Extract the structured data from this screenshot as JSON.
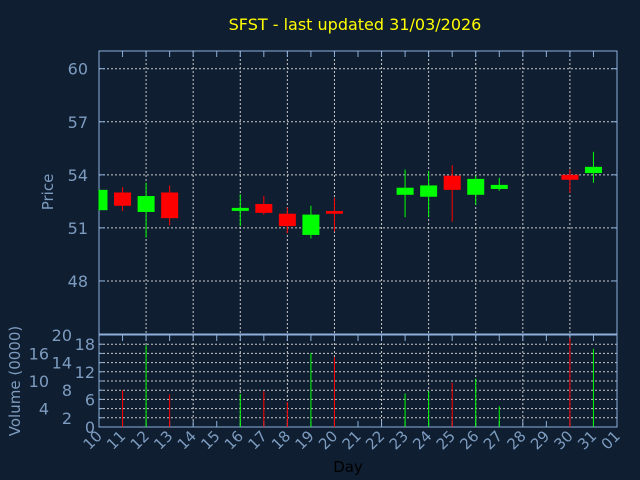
{
  "chart_data": [
    {
      "type": "candlestick",
      "title": "SFST - last updated 31/03/2026",
      "ylabel": "Price",
      "ylim": [
        45,
        61
      ],
      "yticks": [
        48,
        51,
        54,
        57,
        60
      ],
      "grid": true,
      "categories": [
        "10",
        "11",
        "12",
        "13",
        "14",
        "15",
        "16",
        "17",
        "18",
        "19",
        "20",
        "21",
        "22",
        "23",
        "24",
        "25",
        "26",
        "27",
        "28",
        "29",
        "30",
        "31",
        "01"
      ],
      "candles": [
        {
          "day": "10",
          "open": 52.0,
          "high": 53.15,
          "low": 52.0,
          "close": 53.15
        },
        {
          "day": "11",
          "open": 53.0,
          "high": 53.3,
          "low": 51.95,
          "close": 52.25
        },
        {
          "day": "12",
          "open": 51.9,
          "high": 53.55,
          "low": 50.45,
          "close": 52.8
        },
        {
          "day": "13",
          "open": 53.0,
          "high": 53.4,
          "low": 51.15,
          "close": 51.55
        },
        {
          "day": "16",
          "open": 51.96,
          "high": 52.9,
          "low": 51.1,
          "close": 52.13
        },
        {
          "day": "17",
          "open": 52.35,
          "high": 52.8,
          "low": 51.75,
          "close": 51.85
        },
        {
          "day": "18",
          "open": 51.8,
          "high": 52.15,
          "low": 50.7,
          "close": 51.1
        },
        {
          "day": "19",
          "open": 50.6,
          "high": 52.25,
          "low": 50.4,
          "close": 51.75
        },
        {
          "day": "20",
          "open": 51.95,
          "high": 52.7,
          "low": 50.8,
          "close": 51.8
        },
        {
          "day": "23",
          "open": 52.87,
          "high": 54.3,
          "low": 51.6,
          "close": 53.27
        },
        {
          "day": "24",
          "open": 52.76,
          "high": 54.2,
          "low": 51.6,
          "close": 53.4
        },
        {
          "day": "25",
          "open": 53.95,
          "high": 54.55,
          "low": 51.35,
          "close": 53.15
        },
        {
          "day": "26",
          "open": 52.87,
          "high": 53.95,
          "low": 52.3,
          "close": 53.77
        },
        {
          "day": "27",
          "open": 53.2,
          "high": 53.83,
          "low": 53.1,
          "close": 53.43
        },
        {
          "day": "30",
          "open": 54.0,
          "high": 54.3,
          "low": 52.98,
          "close": 53.72
        },
        {
          "day": "31",
          "open": 54.1,
          "high": 55.3,
          "low": 53.55,
          "close": 54.45
        }
      ]
    },
    {
      "type": "bar",
      "ylabel": "Volume (0000)",
      "xlabel": "Day",
      "ylim": [
        0,
        20
      ],
      "yticks": [
        0,
        2,
        4,
        6,
        8,
        10,
        12,
        14,
        16,
        18,
        20
      ],
      "grid": true,
      "bars": [
        {
          "day": "11",
          "value": 8.0,
          "dir": "down"
        },
        {
          "day": "12",
          "value": 17.8,
          "dir": "up"
        },
        {
          "day": "13",
          "value": 7.1,
          "dir": "down"
        },
        {
          "day": "16",
          "value": 7.2,
          "dir": "up"
        },
        {
          "day": "17",
          "value": 7.8,
          "dir": "down"
        },
        {
          "day": "18",
          "value": 5.4,
          "dir": "down"
        },
        {
          "day": "19",
          "value": 16.1,
          "dir": "up"
        },
        {
          "day": "20",
          "value": 15.2,
          "dir": "down"
        },
        {
          "day": "23",
          "value": 7.3,
          "dir": "up"
        },
        {
          "day": "24",
          "value": 7.8,
          "dir": "up"
        },
        {
          "day": "25",
          "value": 9.6,
          "dir": "down"
        },
        {
          "day": "26",
          "value": 10.5,
          "dir": "up"
        },
        {
          "day": "27",
          "value": 4.5,
          "dir": "up"
        },
        {
          "day": "30",
          "value": 19.3,
          "dir": "down"
        },
        {
          "day": "31",
          "value": 17.0,
          "dir": "up"
        }
      ]
    }
  ],
  "colors": {
    "background": "#0f1e30",
    "title": "#ffff00",
    "axis": "#8fb0dc",
    "label": "#7d9cc0",
    "grid": "#c8c8c8",
    "up": "#00ff00",
    "down": "#ff0000",
    "xlabel": "#000000"
  }
}
